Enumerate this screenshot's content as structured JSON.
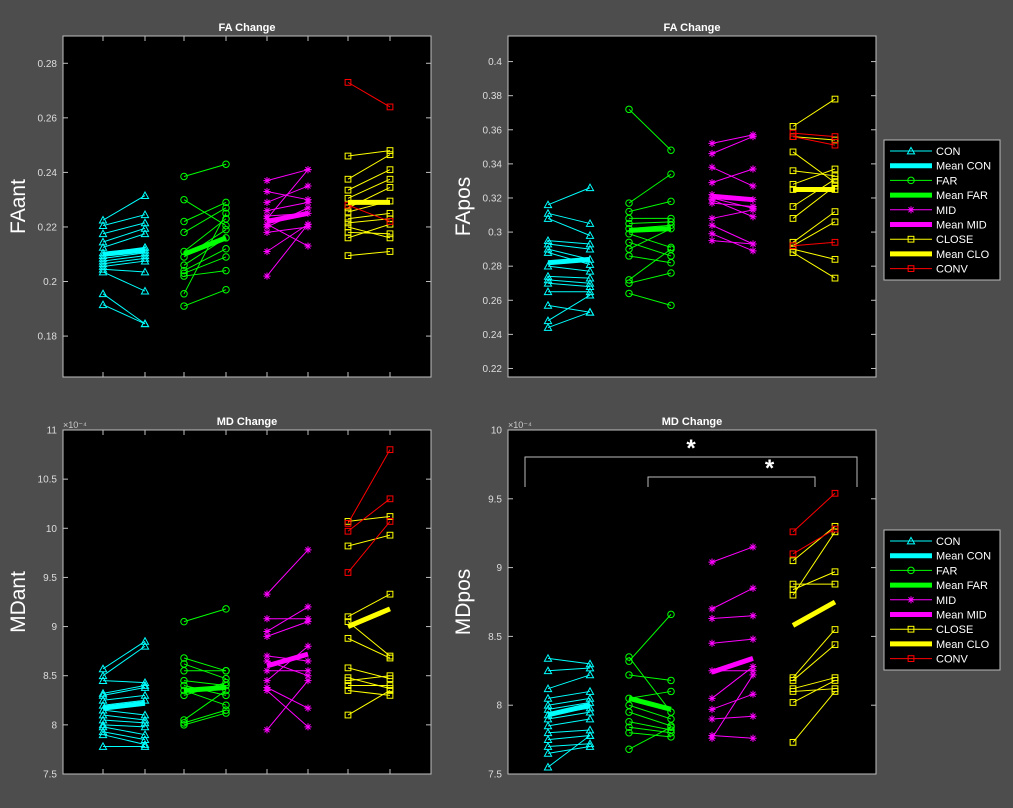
{
  "figure": {
    "colors": {
      "background": "#4d4d4d",
      "axes": "#000000",
      "axis_line": "#bfbfbf",
      "text": "#ffffff",
      "CON": "#00ffff",
      "FAR": "#00ff00",
      "MID": "#ff00ff",
      "CLOSE": "#ffff00",
      "CONV": "#ff0000"
    },
    "legend_labels": [
      "CON",
      "Mean CON",
      "FAR",
      "Mean FAR",
      "MID",
      "Mean MID",
      "CLOSE",
      "Mean CLO",
      "CONV"
    ]
  },
  "chart_data": [
    {
      "id": "FAant",
      "type": "line",
      "title": "FA Change",
      "ylabel": "FAant",
      "ylim": [
        0.165,
        0.29
      ],
      "yticks": [
        0.18,
        0.2,
        0.22,
        0.24,
        0.26,
        0.28
      ],
      "ytick_labels": [
        "0.18",
        "0.2",
        "0.22",
        "0.24",
        "0.26",
        "0.28"
      ],
      "exponent_label": "",
      "legend": false,
      "groups": [
        {
          "name": "CON",
          "marker": "triangle",
          "pairs": [
            [
              0.2225,
              0.2315
            ],
            [
              0.2205,
              0.2245
            ],
            [
              0.2175,
              0.2215
            ],
            [
              0.2145,
              0.2195
            ],
            [
              0.2125,
              0.2175
            ],
            [
              0.2105,
              0.2125
            ],
            [
              0.2095,
              0.2115
            ],
            [
              0.2085,
              0.2105
            ],
            [
              0.2075,
              0.2095
            ],
            [
              0.2065,
              0.2085
            ],
            [
              0.2055,
              0.2075
            ],
            [
              0.2045,
              0.2035
            ],
            [
              0.2035,
              0.1965
            ],
            [
              0.1955,
              0.1845
            ],
            [
              0.1915,
              0.1845
            ]
          ],
          "mean": [
            0.21,
            0.2115
          ]
        },
        {
          "name": "FAR",
          "marker": "circle",
          "pairs": [
            [
              0.2385,
              0.243
            ],
            [
              0.23,
              0.2205
            ],
            [
              0.222,
              0.229
            ],
            [
              0.218,
              0.227
            ],
            [
              0.211,
              0.223
            ],
            [
              0.209,
              0.219
            ],
            [
              0.206,
              0.216
            ],
            [
              0.204,
              0.212
            ],
            [
              0.203,
              0.209
            ],
            [
              0.202,
              0.204
            ],
            [
              0.1955,
              0.225
            ],
            [
              0.191,
              0.197
            ]
          ],
          "mean": [
            0.21,
            0.216
          ]
        },
        {
          "name": "MID",
          "marker": "star",
          "pairs": [
            [
              0.237,
              0.241
            ],
            [
              0.233,
              0.23
            ],
            [
              0.229,
              0.235
            ],
            [
              0.226,
              0.229
            ],
            [
              0.224,
              0.225
            ],
            [
              0.223,
              0.241
            ],
            [
              0.221,
              0.213
            ],
            [
              0.22,
              0.227
            ],
            [
              0.218,
              0.22
            ],
            [
              0.211,
              0.221
            ],
            [
              0.202,
              0.221
            ]
          ],
          "mean": [
            0.222,
            0.225
          ]
        },
        {
          "name": "CLOSE",
          "marker": "square",
          "pairs": [
            [
              0.246,
              0.248
            ],
            [
              0.2375,
              0.2465
            ],
            [
              0.2335,
              0.241
            ],
            [
              0.2305,
              0.2375
            ],
            [
              0.227,
              0.2345
            ],
            [
              0.2255,
              0.2295
            ],
            [
              0.223,
              0.225
            ],
            [
              0.2215,
              0.223
            ],
            [
              0.22,
              0.216
            ],
            [
              0.218,
              0.2175
            ],
            [
              0.216,
              0.221
            ],
            [
              0.2095,
              0.211
            ]
          ],
          "mean": [
            0.229,
            0.229
          ]
        },
        {
          "name": "CONV",
          "marker": "square",
          "pairs": [
            [
              0.273,
              0.264
            ],
            [
              0.228,
              0.222
            ]
          ],
          "mean": null
        }
      ]
    },
    {
      "id": "FApos",
      "type": "line",
      "title": "FA Change",
      "ylabel": "FApos",
      "ylim": [
        0.215,
        0.415
      ],
      "yticks": [
        0.22,
        0.24,
        0.26,
        0.28,
        0.3,
        0.32,
        0.34,
        0.36,
        0.38,
        0.4
      ],
      "ytick_labels": [
        "0.22",
        "0.24",
        "0.26",
        "0.28",
        "0.3",
        "0.32",
        "0.34",
        "0.36",
        "0.38",
        "0.4"
      ],
      "exponent_label": "",
      "legend": true,
      "groups": [
        {
          "name": "CON",
          "marker": "triangle",
          "pairs": [
            [
              0.316,
              0.326
            ],
            [
              0.311,
              0.305
            ],
            [
              0.308,
              0.298
            ],
            [
              0.295,
              0.293
            ],
            [
              0.293,
              0.29
            ],
            [
              0.29,
              0.284
            ],
            [
              0.288,
              0.281
            ],
            [
              0.28,
              0.277
            ],
            [
              0.274,
              0.273
            ],
            [
              0.272,
              0.27
            ],
            [
              0.27,
              0.268
            ],
            [
              0.265,
              0.265
            ],
            [
              0.257,
              0.253
            ],
            [
              0.248,
              0.263
            ],
            [
              0.244,
              0.253
            ]
          ],
          "mean": [
            0.282,
            0.284
          ]
        },
        {
          "name": "FAR",
          "marker": "circle",
          "pairs": [
            [
              0.372,
              0.348
            ],
            [
              0.317,
              0.334
            ],
            [
              0.312,
              0.318
            ],
            [
              0.308,
              0.308
            ],
            [
              0.305,
              0.306
            ],
            [
              0.302,
              0.304
            ],
            [
              0.299,
              0.291
            ],
            [
              0.294,
              0.286
            ],
            [
              0.29,
              0.302
            ],
            [
              0.286,
              0.282
            ],
            [
              0.272,
              0.29
            ],
            [
              0.27,
              0.276
            ],
            [
              0.264,
              0.257
            ]
          ],
          "mean": [
            0.301,
            0.302
          ]
        },
        {
          "name": "MID",
          "marker": "star",
          "pairs": [
            [
              0.352,
              0.357
            ],
            [
              0.346,
              0.356
            ],
            [
              0.338,
              0.327
            ],
            [
              0.329,
              0.337
            ],
            [
              0.322,
              0.319
            ],
            [
              0.32,
              0.314
            ],
            [
              0.319,
              0.309
            ],
            [
              0.317,
              0.315
            ],
            [
              0.308,
              0.313
            ],
            [
              0.304,
              0.293
            ],
            [
              0.299,
              0.289
            ],
            [
              0.295,
              0.293
            ]
          ],
          "mean": [
            0.321,
            0.319
          ]
        },
        {
          "name": "CLOSE",
          "marker": "square",
          "pairs": [
            [
              0.362,
              0.378
            ],
            [
              0.356,
              0.354
            ],
            [
              0.347,
              0.329
            ],
            [
              0.336,
              0.333
            ],
            [
              0.328,
              0.337
            ],
            [
              0.325,
              0.325
            ],
            [
              0.315,
              0.331
            ],
            [
              0.308,
              0.327
            ],
            [
              0.294,
              0.312
            ],
            [
              0.292,
              0.306
            ],
            [
              0.29,
              0.284
            ],
            [
              0.288,
              0.273
            ]
          ],
          "mean": [
            0.325,
            0.325
          ]
        },
        {
          "name": "CONV",
          "marker": "square",
          "pairs": [
            [
              0.358,
              0.356
            ],
            [
              0.356,
              0.351
            ],
            [
              0.292,
              0.294
            ]
          ],
          "mean": null
        }
      ]
    },
    {
      "id": "MDant",
      "type": "line",
      "title": "MD Change",
      "ylabel": "MDant",
      "ylim": [
        7.5,
        11.0
      ],
      "yticks": [
        7.5,
        8,
        8.5,
        9,
        9.5,
        10,
        10.5,
        11
      ],
      "ytick_labels": [
        "7.5",
        "8",
        "8.5",
        "9",
        "9.5",
        "10",
        "10.5",
        "11"
      ],
      "exponent_label": "×10⁻⁴",
      "legend": false,
      "groups": [
        {
          "name": "CON",
          "marker": "triangle",
          "pairs": [
            [
              8.57,
              8.85
            ],
            [
              8.5,
              8.8
            ],
            [
              8.45,
              8.43
            ],
            [
              8.32,
              8.4
            ],
            [
              8.3,
              8.38
            ],
            [
              8.25,
              8.3
            ],
            [
              8.2,
              8.25
            ],
            [
              8.15,
              8.1
            ],
            [
              8.1,
              8.05
            ],
            [
              8.05,
              8.02
            ],
            [
              8.0,
              7.98
            ],
            [
              7.98,
              7.9
            ],
            [
              7.93,
              7.85
            ],
            [
              7.9,
              7.8
            ],
            [
              7.78,
              7.78
            ]
          ],
          "mean": [
            8.17,
            8.22
          ]
        },
        {
          "name": "FAR",
          "marker": "circle",
          "pairs": [
            [
              9.05,
              9.18
            ],
            [
              8.68,
              8.55
            ],
            [
              8.62,
              8.47
            ],
            [
              8.55,
              8.55
            ],
            [
              8.45,
              8.4
            ],
            [
              8.4,
              8.3
            ],
            [
              8.35,
              8.2
            ],
            [
              8.3,
              8.43
            ],
            [
              8.05,
              8.35
            ],
            [
              8.02,
              8.15
            ],
            [
              8.0,
              8.12
            ]
          ],
          "mean": [
            8.35,
            8.38
          ]
        },
        {
          "name": "MID",
          "marker": "star",
          "pairs": [
            [
              9.33,
              9.78
            ],
            [
              9.08,
              9.08
            ],
            [
              8.95,
              9.2
            ],
            [
              8.9,
              9.05
            ],
            [
              8.7,
              8.65
            ],
            [
              8.65,
              8.5
            ],
            [
              8.55,
              8.55
            ],
            [
              8.45,
              8.8
            ],
            [
              8.38,
              8.17
            ],
            [
              8.35,
              7.98
            ],
            [
              7.95,
              8.45
            ]
          ],
          "mean": [
            8.6,
            8.72
          ]
        },
        {
          "name": "CLOSE",
          "marker": "square",
          "pairs": [
            [
              10.07,
              10.12
            ],
            [
              9.82,
              9.93
            ],
            [
              9.1,
              9.33
            ],
            [
              9.05,
              8.7
            ],
            [
              8.88,
              8.68
            ],
            [
              8.58,
              8.47
            ],
            [
              8.48,
              8.37
            ],
            [
              8.45,
              8.5
            ],
            [
              8.4,
              8.4
            ],
            [
              8.35,
              8.3
            ],
            [
              8.1,
              8.35
            ]
          ],
          "mean": [
            9.0,
            9.18
          ]
        },
        {
          "name": "CONV",
          "marker": "square",
          "pairs": [
            [
              10.05,
              10.8
            ],
            [
              9.97,
              10.3
            ],
            [
              9.55,
              10.07
            ]
          ],
          "mean": null
        }
      ]
    },
    {
      "id": "MDpos",
      "type": "line",
      "title": "MD Change",
      "ylabel": "MDpos",
      "ylim": [
        7.5,
        10.0
      ],
      "yticks": [
        7.5,
        8,
        8.5,
        9,
        9.5,
        10
      ],
      "ytick_labels": [
        "7.5",
        "8",
        "8.5",
        "9",
        "9.5",
        "10"
      ],
      "exponent_label": "×10⁻⁴",
      "legend": true,
      "significance": [
        "*",
        "*"
      ],
      "groups": [
        {
          "name": "CON",
          "marker": "triangle",
          "pairs": [
            [
              8.34,
              8.3
            ],
            [
              8.25,
              8.27
            ],
            [
              8.12,
              8.22
            ],
            [
              8.05,
              8.1
            ],
            [
              8.0,
              8.05
            ],
            [
              7.97,
              8.02
            ],
            [
              7.93,
              7.98
            ],
            [
              7.9,
              7.95
            ],
            [
              7.85,
              7.9
            ],
            [
              7.8,
              7.82
            ],
            [
              7.75,
              7.78
            ],
            [
              7.7,
              7.72
            ],
            [
              7.65,
              7.7
            ],
            [
              7.55,
              7.78
            ]
          ],
          "mean": [
            7.93,
            8.0
          ]
        },
        {
          "name": "FAR",
          "marker": "circle",
          "pairs": [
            [
              8.35,
              7.95
            ],
            [
              8.32,
              8.66
            ],
            [
              8.22,
              8.18
            ],
            [
              8.05,
              8.1
            ],
            [
              8.0,
              7.9
            ],
            [
              7.95,
              7.85
            ],
            [
              7.88,
              7.82
            ],
            [
              7.84,
              7.8
            ],
            [
              7.8,
              7.77
            ],
            [
              7.68,
              7.84
            ]
          ],
          "mean": [
            8.05,
            7.97
          ]
        },
        {
          "name": "MID",
          "marker": "star",
          "pairs": [
            [
              9.04,
              9.15
            ],
            [
              8.7,
              8.85
            ],
            [
              8.63,
              8.65
            ],
            [
              8.45,
              8.48
            ],
            [
              8.25,
              8.25
            ],
            [
              8.05,
              8.28
            ],
            [
              7.97,
              8.08
            ],
            [
              7.9,
              7.92
            ],
            [
              7.78,
              7.76
            ],
            [
              7.76,
              8.22
            ]
          ],
          "mean": [
            8.24,
            8.34
          ]
        },
        {
          "name": "CLOSE",
          "marker": "square",
          "pairs": [
            [
              9.05,
              9.3
            ],
            [
              8.88,
              8.88
            ],
            [
              8.84,
              8.97
            ],
            [
              8.8,
              9.26
            ],
            [
              8.2,
              8.55
            ],
            [
              8.18,
              8.44
            ],
            [
              8.12,
              8.2
            ],
            [
              8.1,
              8.12
            ],
            [
              8.02,
              8.18
            ],
            [
              7.73,
              8.1
            ]
          ],
          "mean": [
            8.58,
            8.75
          ]
        },
        {
          "name": "CONV",
          "marker": "square",
          "pairs": [
            [
              9.26,
              9.54
            ],
            [
              9.1,
              9.28
            ]
          ],
          "mean": null
        }
      ]
    }
  ]
}
